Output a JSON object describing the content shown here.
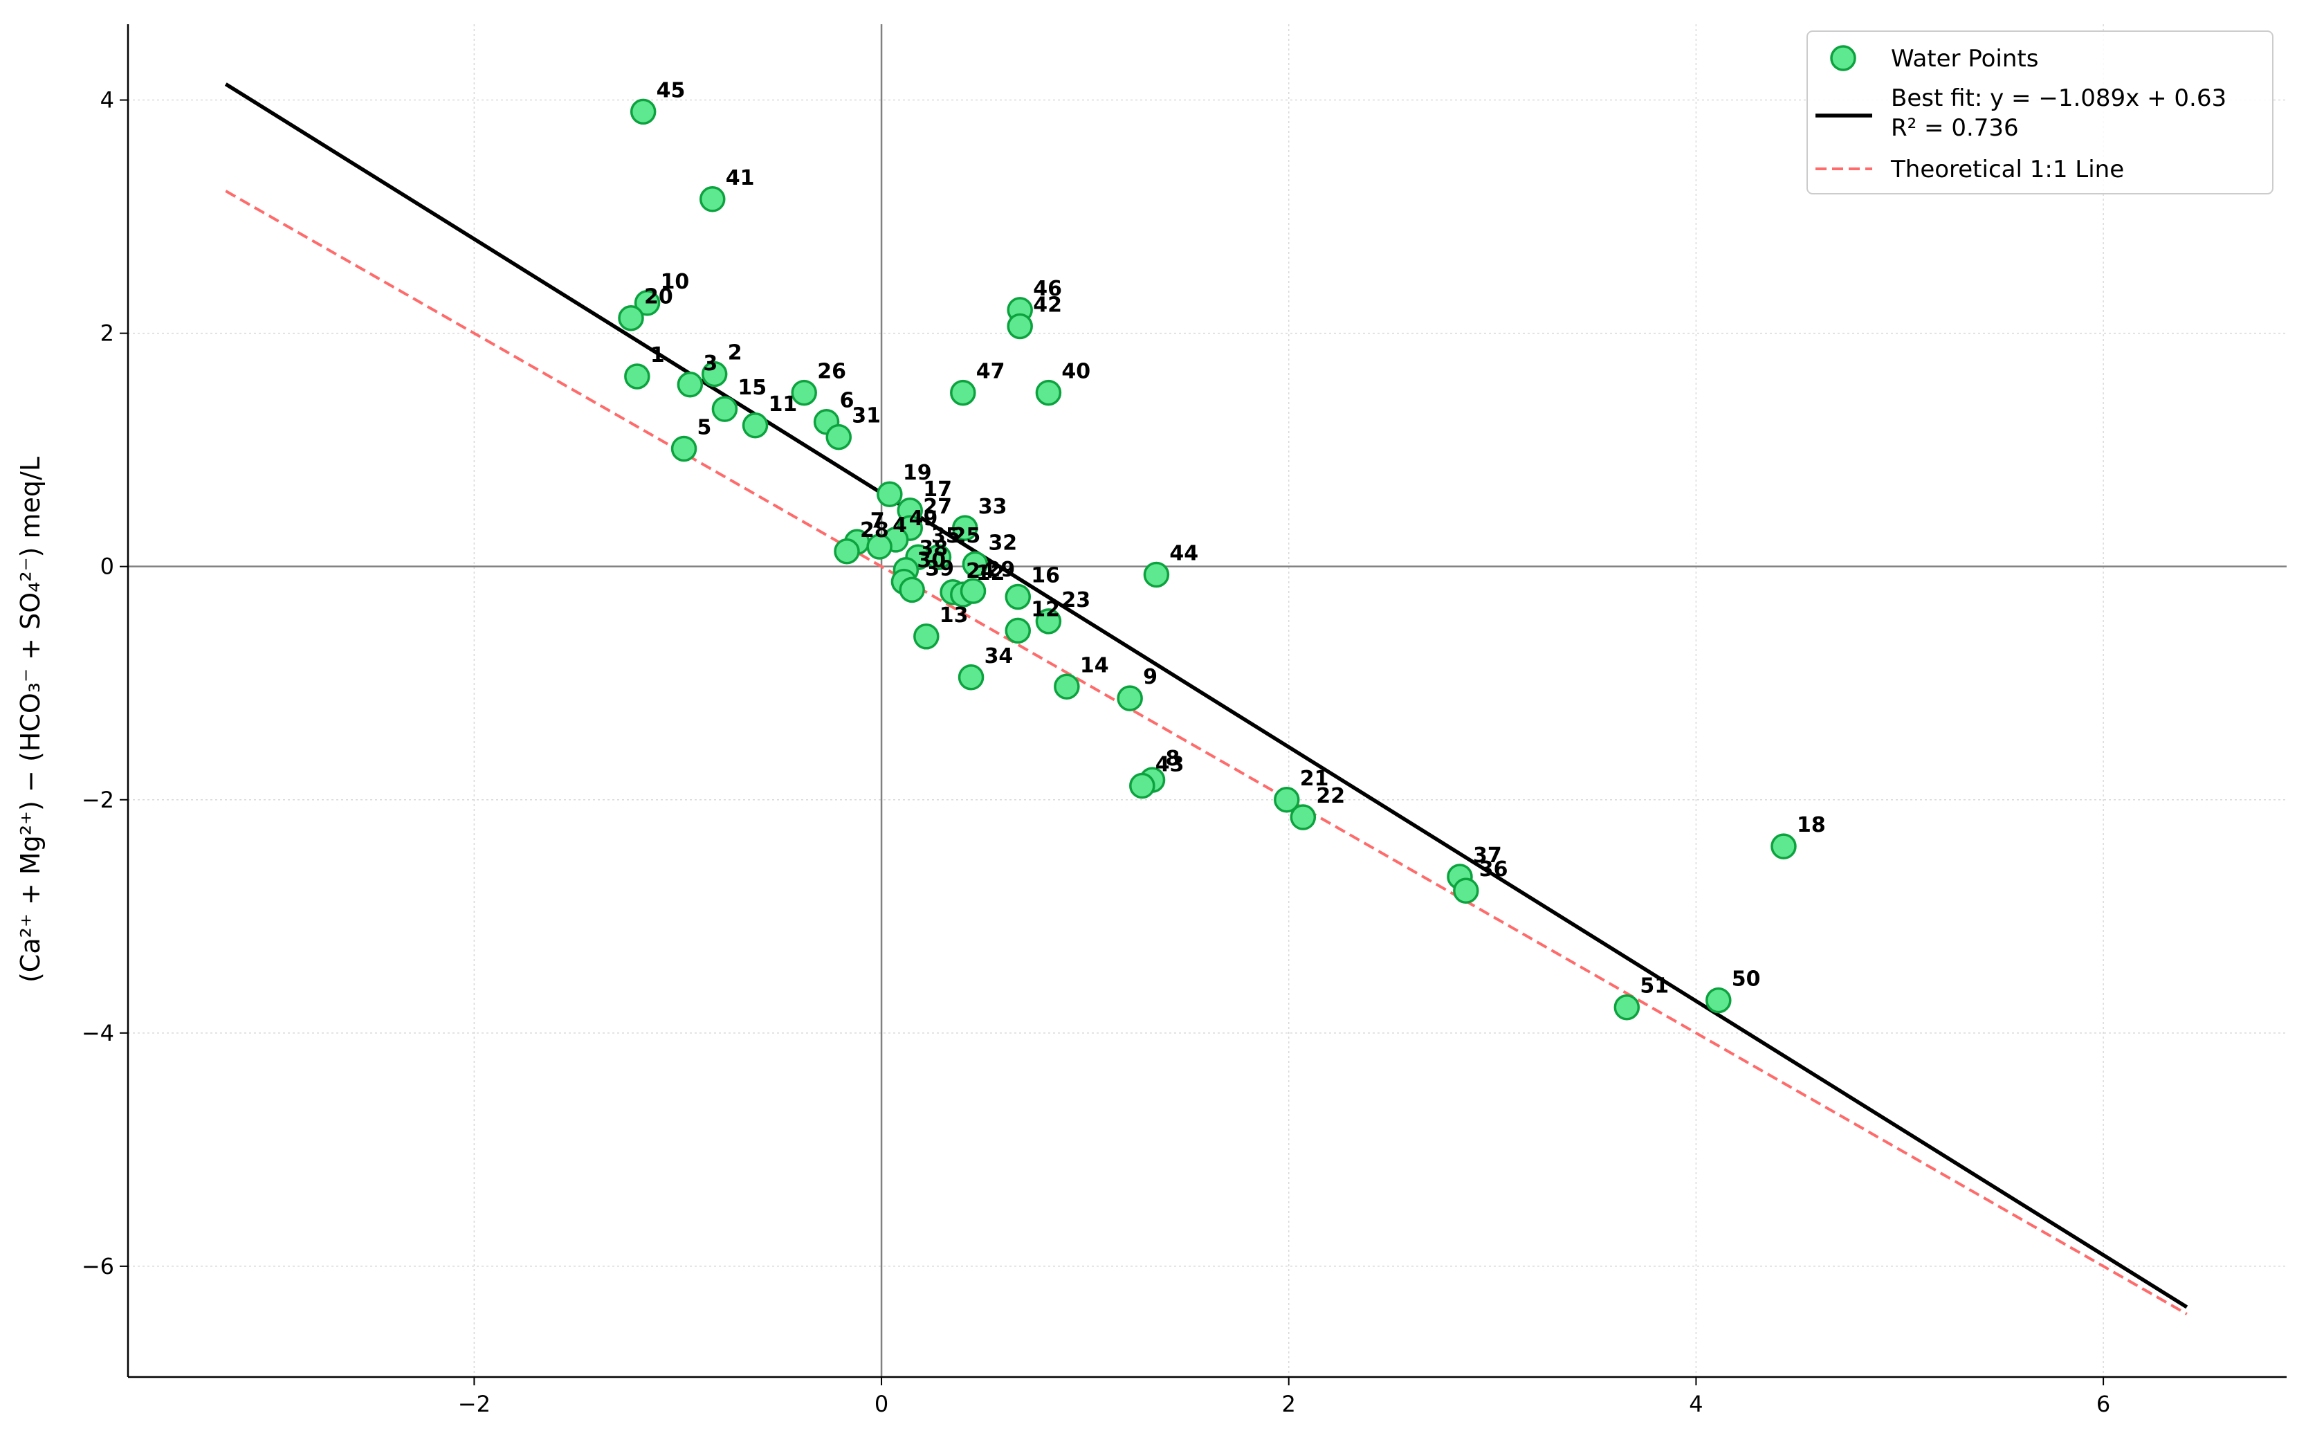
{
  "chart_data": {
    "type": "scatter",
    "title": "",
    "xlabel": "",
    "ylabel": "(Ca²⁺ + Mg²⁺) − (HCO₃⁻ + SO₄²⁻) meq/L",
    "xlim": [
      -3.7,
      6.9
    ],
    "ylim": [
      -6.95,
      4.65
    ],
    "x_ticks": [
      -2,
      0,
      2,
      4,
      6
    ],
    "y_ticks": [
      -6,
      -4,
      -2,
      0,
      2,
      4
    ],
    "tick_labels": {
      "x": [
        "−2",
        "0",
        "2",
        "4",
        "6"
      ],
      "y": [
        "−6",
        "−4",
        "−2",
        "0",
        "2",
        "4"
      ]
    },
    "grid": true,
    "legend_position": "upper-right",
    "colors": {
      "point_fill": "#5ee88f",
      "point_edge": "#0ca33f",
      "fit_line": "#000000",
      "theory_line": "#ff6b6b",
      "zero_axes": "#808080"
    },
    "series": [
      {
        "name": "Water Points",
        "points": [
          {
            "label": "45",
            "x": -1.17,
            "y": 3.9
          },
          {
            "label": "41",
            "x": -0.83,
            "y": 3.15
          },
          {
            "label": "10",
            "x": -1.15,
            "y": 2.26
          },
          {
            "label": "20",
            "x": -1.23,
            "y": 2.13
          },
          {
            "label": "1",
            "x": -1.2,
            "y": 1.63
          },
          {
            "label": "3",
            "x": -0.94,
            "y": 1.56
          },
          {
            "label": "2",
            "x": -0.82,
            "y": 1.65
          },
          {
            "label": "15",
            "x": -0.77,
            "y": 1.35
          },
          {
            "label": "11",
            "x": -0.62,
            "y": 1.21
          },
          {
            "label": "26",
            "x": -0.38,
            "y": 1.49
          },
          {
            "label": "6",
            "x": -0.27,
            "y": 1.24
          },
          {
            "label": "31",
            "x": -0.21,
            "y": 1.11
          },
          {
            "label": "5",
            "x": -0.97,
            "y": 1.01
          },
          {
            "label": "19",
            "x": 0.04,
            "y": 0.62
          },
          {
            "label": "17",
            "x": 0.14,
            "y": 0.48
          },
          {
            "label": "27",
            "x": 0.14,
            "y": 0.33
          },
          {
            "label": "33",
            "x": 0.41,
            "y": 0.33
          },
          {
            "label": "49",
            "x": 0.07,
            "y": 0.23
          },
          {
            "label": "7",
            "x": -0.12,
            "y": 0.21
          },
          {
            "label": "4",
            "x": -0.01,
            "y": 0.17
          },
          {
            "label": "28",
            "x": -0.17,
            "y": 0.13
          },
          {
            "label": "35",
            "x": 0.18,
            "y": 0.08
          },
          {
            "label": "25",
            "x": 0.28,
            "y": 0.08
          },
          {
            "label": "32",
            "x": 0.46,
            "y": 0.02
          },
          {
            "label": "38",
            "x": 0.12,
            "y": -0.03
          },
          {
            "label": "30",
            "x": 0.11,
            "y": -0.13
          },
          {
            "label": "39",
            "x": 0.15,
            "y": -0.2
          },
          {
            "label": "24",
            "x": 0.35,
            "y": -0.22
          },
          {
            "label": "12",
            "x": 0.4,
            "y": -0.24
          },
          {
            "label": "29",
            "x": 0.45,
            "y": -0.21
          },
          {
            "label": "16",
            "x": 0.67,
            "y": -0.26
          },
          {
            "label": "23",
            "x": 0.82,
            "y": -0.47
          },
          {
            "label": "13",
            "x": 0.22,
            "y": -0.6
          },
          {
            "label": "12",
            "x": 0.67,
            "y": -0.55
          },
          {
            "label": "34",
            "x": 0.44,
            "y": -0.95
          },
          {
            "label": "46",
            "x": 0.68,
            "y": 2.2
          },
          {
            "label": "42",
            "x": 0.68,
            "y": 2.06
          },
          {
            "label": "47",
            "x": 0.4,
            "y": 1.49
          },
          {
            "label": "40",
            "x": 0.82,
            "y": 1.49
          },
          {
            "label": "44",
            "x": 1.35,
            "y": -0.07
          },
          {
            "label": "14",
            "x": 0.91,
            "y": -1.03
          },
          {
            "label": "9",
            "x": 1.22,
            "y": -1.13
          },
          {
            "label": "8",
            "x": 1.33,
            "y": -1.83
          },
          {
            "label": "43",
            "x": 1.28,
            "y": -1.88
          },
          {
            "label": "21",
            "x": 1.99,
            "y": -2.0
          },
          {
            "label": "22",
            "x": 2.07,
            "y": -2.15
          },
          {
            "label": "37",
            "x": 2.84,
            "y": -2.66
          },
          {
            "label": "36",
            "x": 2.87,
            "y": -2.78
          },
          {
            "label": "18",
            "x": 4.43,
            "y": -2.4
          },
          {
            "label": "51",
            "x": 3.66,
            "y": -3.78
          },
          {
            "label": "50",
            "x": 4.11,
            "y": -3.72
          }
        ]
      }
    ],
    "fit_line": {
      "name": "Best fit: y = −1.089x + 0.63",
      "r2_label": "R² = 0.736",
      "slope": -1.089,
      "intercept": 0.63,
      "x_range": [
        -3.22,
        6.41
      ]
    },
    "theoretical_line": {
      "name": "Theoretical 1:1 Line",
      "slope": -1,
      "intercept": 0,
      "x_range": [
        -3.22,
        6.41
      ]
    }
  }
}
